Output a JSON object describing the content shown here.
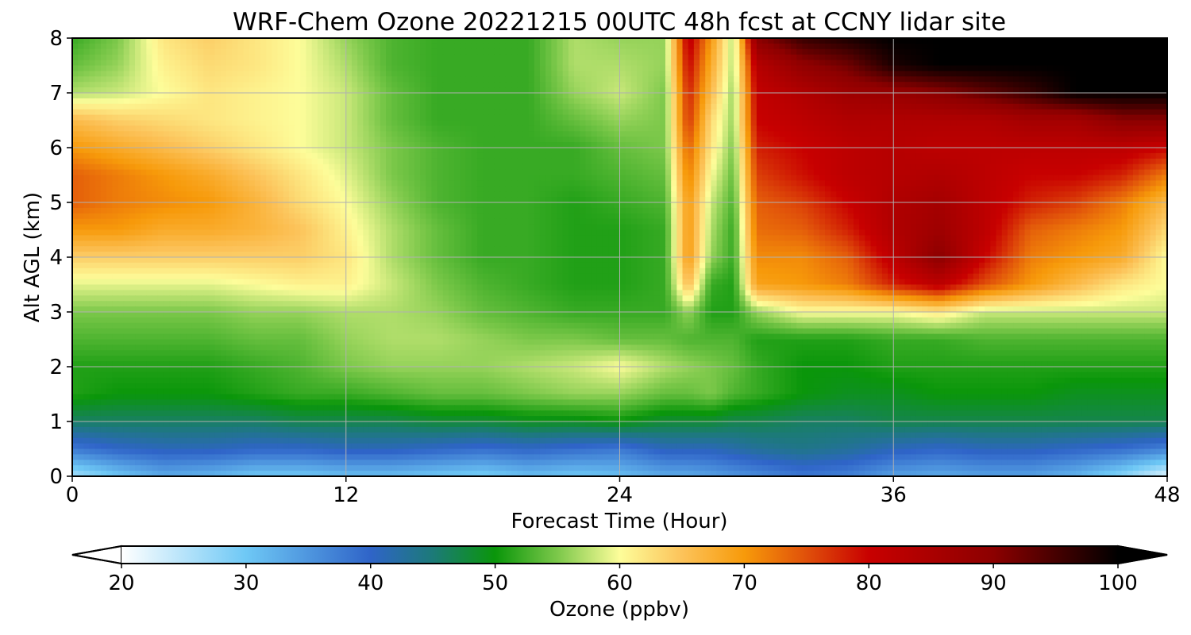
{
  "chart_data": {
    "type": "heatmap",
    "title": "WRF-Chem Ozone  20221215 00UTC 48h fcst at CCNY lidar site",
    "xlabel": "Forecast Time (Hour)",
    "ylabel": "Alt AGL (km)",
    "xlim": [
      0,
      48
    ],
    "ylim": [
      0,
      8
    ],
    "x_ticks": [
      "0",
      "12",
      "24",
      "36",
      "48"
    ],
    "y_ticks": [
      "0",
      "1",
      "2",
      "3",
      "4",
      "5",
      "6",
      "7",
      "8"
    ],
    "grid": true,
    "colorbar": {
      "label": "Ozone  (ppbv)",
      "range": [
        20,
        100
      ],
      "ticks": [
        "20",
        "30",
        "40",
        "50",
        "60",
        "70",
        "80",
        "90",
        "100"
      ],
      "extend": "both",
      "placement": "bottom",
      "stops": [
        {
          "v": 20,
          "c": "#ffffff"
        },
        {
          "v": 30,
          "c": "#6ec8f5"
        },
        {
          "v": 40,
          "c": "#2f64c8"
        },
        {
          "v": 45,
          "c": "#1c7a78"
        },
        {
          "v": 50,
          "c": "#0a960a"
        },
        {
          "v": 55,
          "c": "#7cc84a"
        },
        {
          "v": 60,
          "c": "#fdfd9a"
        },
        {
          "v": 65,
          "c": "#fcc35a"
        },
        {
          "v": 70,
          "c": "#f79a0a"
        },
        {
          "v": 75,
          "c": "#e0500a"
        },
        {
          "v": 80,
          "c": "#c80000"
        },
        {
          "v": 90,
          "c": "#8c0000"
        },
        {
          "v": 100,
          "c": "#000000"
        }
      ]
    },
    "x": [
      0,
      2,
      4,
      6,
      8,
      10,
      12,
      14,
      16,
      18,
      20,
      22,
      24,
      26,
      27,
      28,
      29,
      30,
      32,
      34,
      36,
      38,
      40,
      42,
      44,
      46,
      48
    ],
    "y": [
      0,
      0.5,
      1,
      1.5,
      2,
      2.5,
      3,
      3.5,
      4,
      4.5,
      5,
      5.5,
      6,
      6.5,
      7,
      7.5,
      8
    ],
    "z": [
      [
        26,
        30,
        33,
        32,
        30,
        30,
        31,
        31,
        30,
        29,
        31,
        30,
        31,
        33,
        33,
        34,
        35,
        36,
        38,
        37,
        34,
        33,
        34,
        34,
        32,
        28,
        22
      ],
      [
        38,
        40,
        41,
        41,
        40,
        40,
        41,
        41,
        40,
        39,
        40,
        39,
        38,
        41,
        41,
        41,
        42,
        43,
        44,
        43,
        41,
        40,
        41,
        41,
        40,
        39,
        37
      ],
      [
        46,
        46,
        46,
        46,
        46,
        47,
        47,
        47,
        48,
        48,
        49,
        49,
        50,
        48,
        48,
        48,
        47,
        47,
        46,
        46,
        47,
        47,
        47,
        47,
        47,
        47,
        47
      ],
      [
        51,
        50,
        50,
        50,
        51,
        52,
        52,
        53,
        54,
        54,
        55,
        56,
        56,
        54,
        54,
        55,
        53,
        52,
        50,
        49,
        49,
        50,
        50,
        50,
        49,
        49,
        49
      ],
      [
        51,
        51,
        51,
        51,
        52,
        53,
        55,
        56,
        56,
        56,
        57,
        58,
        60,
        57,
        56,
        55,
        54,
        52,
        50,
        50,
        51,
        51,
        51,
        51,
        51,
        51,
        51
      ],
      [
        53,
        53,
        53,
        53,
        54,
        54,
        56,
        57,
        57,
        56,
        55,
        55,
        54,
        54,
        53,
        53,
        53,
        51,
        51,
        51,
        52,
        52,
        53,
        53,
        53,
        53,
        53
      ],
      [
        55,
        55,
        55,
        55,
        56,
        56,
        57,
        57,
        56,
        54,
        53,
        52,
        52,
        52,
        56,
        51,
        51,
        56,
        60,
        60,
        60,
        62,
        58,
        58,
        58,
        58,
        58
      ],
      [
        59,
        59,
        59,
        59,
        60,
        61,
        61,
        58,
        55,
        53,
        52,
        51,
        51,
        52,
        66,
        52,
        51,
        69,
        70,
        72,
        78,
        82,
        75,
        70,
        66,
        62,
        60
      ],
      [
        64,
        64,
        64,
        64,
        64,
        64,
        62,
        57,
        54,
        52,
        52,
        51,
        51,
        52,
        70,
        56,
        52,
        71,
        71,
        74,
        82,
        90,
        80,
        72,
        70,
        68,
        60
      ],
      [
        70,
        70,
        68,
        68,
        67,
        65,
        61,
        57,
        54,
        52,
        52,
        51,
        51,
        52,
        70,
        57,
        52,
        73,
        74,
        78,
        84,
        87,
        82,
        74,
        72,
        70,
        63
      ],
      [
        74,
        72,
        71,
        70,
        67,
        63,
        60,
        56,
        53,
        52,
        52,
        51,
        52,
        53,
        70,
        58,
        53,
        74,
        76,
        80,
        84,
        86,
        82,
        78,
        76,
        72,
        66
      ],
      [
        74,
        72,
        70,
        68,
        65,
        62,
        59,
        55,
        53,
        52,
        52,
        52,
        53,
        54,
        72,
        60,
        54,
        76,
        79,
        82,
        83,
        84,
        82,
        80,
        80,
        78,
        72
      ],
      [
        70,
        68,
        66,
        64,
        62,
        60,
        58,
        55,
        53,
        52,
        52,
        52,
        54,
        55,
        74,
        62,
        55,
        78,
        80,
        82,
        83,
        82,
        82,
        82,
        82,
        82,
        80
      ],
      [
        66,
        64,
        63,
        62,
        61,
        60,
        58,
        54,
        52,
        52,
        52,
        54,
        56,
        55,
        77,
        63,
        56,
        80,
        82,
        84,
        84,
        84,
        84,
        86,
        86,
        90,
        90
      ],
      [
        57,
        58,
        60,
        62,
        61,
        60,
        58,
        54,
        52,
        52,
        52,
        56,
        58,
        55,
        78,
        66,
        56,
        81,
        84,
        87,
        88,
        90,
        93,
        96,
        100,
        100,
        100
      ],
      [
        54,
        56,
        61,
        63,
        62,
        60,
        57,
        53,
        52,
        52,
        52,
        57,
        57,
        56,
        80,
        68,
        57,
        83,
        89,
        92,
        98,
        100,
        100,
        100,
        100,
        100,
        100
      ],
      [
        52,
        55,
        62,
        64,
        62,
        60,
        56,
        53,
        52,
        52,
        52,
        57,
        56,
        56,
        82,
        70,
        57,
        90,
        96,
        98,
        100,
        100,
        100,
        100,
        100,
        100,
        100
      ]
    ]
  }
}
